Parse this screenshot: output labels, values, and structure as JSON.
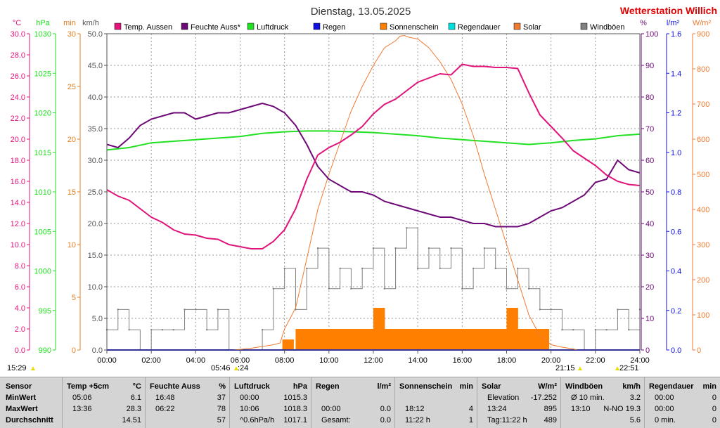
{
  "title": "Dienstag, 13.05.2025",
  "brand": "Wetterstation Willich",
  "colors": {
    "temp": "#e0147a",
    "humidity": "#6e0a78",
    "pressure": "#22e022",
    "rain": "#1010e0",
    "sunshine": "#ff7f00",
    "raindur": "#00e0e0",
    "solar": "#f07a30",
    "gust": "#808080"
  },
  "legend": [
    {
      "label": "Temp. Aussen",
      "color": "#e0147a"
    },
    {
      "label": "Feuchte Auss*",
      "color": "#6e0a78"
    },
    {
      "label": "Luftdruck",
      "color": "#22e022"
    },
    {
      "label": "Regen",
      "color": "#1010e0"
    },
    {
      "label": "Sonnenschein",
      "color": "#ff7f00"
    },
    {
      "label": "Regendauer",
      "color": "#00e0e0"
    },
    {
      "label": "Solar",
      "color": "#f07a30"
    },
    {
      "label": "Windböen",
      "color": "#808080"
    }
  ],
  "units": {
    "temp": "°C",
    "pressure": "hPa",
    "sun": "min",
    "wind": "km/h",
    "humidity": "%",
    "rain": "l/m²",
    "solar": "W/m²"
  },
  "axes": {
    "temp": [
      "0.0",
      "2.0",
      "4.0",
      "6.0",
      "8.0",
      "10.0",
      "12.0",
      "14.0",
      "16.0",
      "18.0",
      "20.0",
      "22.0",
      "24.0",
      "26.0",
      "28.0",
      "30.0"
    ],
    "pressure": [
      "990",
      "995",
      "1000",
      "1005",
      "1010",
      "1015",
      "1020",
      "1025",
      "1030"
    ],
    "sun": [
      "0",
      "5",
      "10",
      "15",
      "20",
      "25",
      "30"
    ],
    "wind": [
      "0.0",
      "5.0",
      "10.0",
      "15.0",
      "20.0",
      "25.0",
      "30.0",
      "35.0",
      "40.0",
      "45.0",
      "50.0"
    ],
    "humidity": [
      "0",
      "10",
      "20",
      "30",
      "40",
      "50",
      "60",
      "70",
      "80",
      "90",
      "100"
    ],
    "rain": [
      "0.0",
      "0.2",
      "0.4",
      "0.6",
      "0.8",
      "1.0",
      "1.2",
      "1.4",
      "1.6"
    ],
    "solar": [
      "0",
      "100",
      "200",
      "300",
      "400",
      "500",
      "600",
      "700",
      "800",
      "900"
    ],
    "time": [
      "00:00",
      "02:00",
      "04:00",
      "06:00",
      "08:00",
      "10:00",
      "12:00",
      "14:00",
      "16:00",
      "18:00",
      "20:00",
      "22:00",
      "24:00"
    ]
  },
  "events": {
    "moonset": "15:29",
    "sunrise": "05:46",
    "sunrise_tail": ":24",
    "sunset": "21:15",
    "moonrise": "22:51"
  },
  "chart_data": {
    "type": "line",
    "x_unit": "hours",
    "xlim": [
      0,
      24
    ],
    "series": [
      {
        "name": "Temp. Aussen",
        "axis": "°C",
        "ylim": [
          0,
          30
        ],
        "x": [
          0,
          0.5,
          1,
          1.5,
          2,
          2.5,
          3,
          3.5,
          4,
          4.5,
          5,
          5.5,
          6,
          6.5,
          7,
          7.5,
          8,
          8.5,
          9,
          9.5,
          10,
          10.5,
          11,
          11.5,
          12,
          12.5,
          13,
          13.5,
          14,
          14.5,
          15,
          15.5,
          16,
          16.5,
          17,
          17.5,
          18,
          18.5,
          19,
          19.5,
          20,
          20.5,
          21,
          21.5,
          22,
          22.5,
          23,
          23.5,
          24
        ],
        "y": [
          15.2,
          14.6,
          14.2,
          13.4,
          12.6,
          12.1,
          11.4,
          11.0,
          10.9,
          10.6,
          10.5,
          10.0,
          9.8,
          9.6,
          9.6,
          10.3,
          11.4,
          13.4,
          16.2,
          18.5,
          19.2,
          19.7,
          20.4,
          21.2,
          22.4,
          23.3,
          23.8,
          24.6,
          25.4,
          25.8,
          26.2,
          26.1,
          27.1,
          26.9,
          26.9,
          26.8,
          26.8,
          26.7,
          24.4,
          22.3,
          21.2,
          20.1,
          18.9,
          18.2,
          17.5,
          16.6,
          16.0,
          15.7,
          15.6
        ]
      },
      {
        "name": "Feuchte Auss*",
        "axis": "%",
        "ylim": [
          0,
          100
        ],
        "x": [
          0,
          0.5,
          1,
          1.5,
          2,
          2.5,
          3,
          3.5,
          4,
          4.5,
          5,
          5.5,
          6,
          6.5,
          7,
          7.5,
          8,
          8.5,
          9,
          9.5,
          10,
          10.5,
          11,
          11.5,
          12,
          12.5,
          13,
          13.5,
          14,
          14.5,
          15,
          15.5,
          16,
          16.5,
          17,
          17.5,
          18,
          18.5,
          19,
          19.5,
          20,
          20.5,
          21,
          21.5,
          22,
          22.5,
          23,
          23.5,
          24
        ],
        "y": [
          65,
          64,
          67,
          71,
          73,
          74,
          75,
          75,
          73,
          74,
          75,
          75,
          76,
          77,
          78,
          77,
          75,
          71,
          65,
          58,
          54,
          52,
          50,
          50,
          49,
          47,
          46,
          45,
          44,
          43,
          42,
          42,
          41,
          40,
          40,
          39,
          39,
          39,
          40,
          42,
          44,
          45,
          47,
          49,
          53,
          54,
          60,
          57,
          56
        ]
      },
      {
        "name": "Luftdruck",
        "axis": "hPa",
        "ylim": [
          990,
          1030
        ],
        "x": [
          0,
          1,
          2,
          3,
          4,
          5,
          6,
          7,
          8,
          9,
          10,
          11,
          12,
          13,
          14,
          15,
          16,
          17,
          18,
          19,
          20,
          21,
          22,
          23,
          24
        ],
        "y": [
          1015.3,
          1015.6,
          1016.2,
          1016.4,
          1016.6,
          1016.8,
          1017.0,
          1017.4,
          1017.6,
          1017.7,
          1017.7,
          1017.6,
          1017.5,
          1017.3,
          1017.1,
          1016.8,
          1016.6,
          1016.4,
          1016.2,
          1016.0,
          1016.2,
          1016.5,
          1016.7,
          1017.1,
          1017.3
        ]
      },
      {
        "name": "Solar",
        "axis": "W/m²",
        "ylim": [
          0,
          900
        ],
        "x": [
          5.7,
          6.5,
          7,
          7.5,
          7.8,
          8,
          8.5,
          9,
          9.5,
          10,
          10.5,
          11,
          11.5,
          12,
          12.5,
          13,
          13.2,
          13.4,
          13.6,
          14,
          14.5,
          15,
          15.5,
          16,
          16.5,
          17,
          17.5,
          18,
          18.5,
          19,
          19.5,
          20,
          20.5,
          21,
          21.2
        ],
        "y": [
          0,
          5,
          10,
          15,
          20,
          60,
          120,
          260,
          400,
          500,
          590,
          680,
          750,
          810,
          860,
          880,
          893,
          895,
          890,
          885,
          860,
          820,
          770,
          700,
          610,
          500,
          400,
          300,
          200,
          100,
          40,
          15,
          8,
          3,
          0
        ]
      },
      {
        "name": "Regen",
        "axis": "l/m²",
        "ylim": [
          0,
          1.6
        ],
        "x": [
          0,
          24
        ],
        "y": [
          0.0,
          0.0
        ]
      },
      {
        "name": "Sonnenschein",
        "axis": "min",
        "ylim": [
          0,
          30
        ],
        "type": "bar",
        "x": [
          7.9,
          8.5,
          9,
          9.5,
          10,
          10.5,
          11,
          11.5,
          12,
          12.5,
          13,
          13.5,
          14,
          14.5,
          15,
          15.5,
          16,
          16.5,
          17,
          17.5,
          18,
          18.5,
          19,
          19.4
        ],
        "y": [
          1,
          2,
          2,
          2,
          2,
          2,
          2,
          2,
          4,
          2,
          2,
          2,
          2,
          2,
          2,
          2,
          2,
          2,
          2,
          2,
          4,
          2,
          2,
          2
        ]
      },
      {
        "name": "Windböen",
        "axis": "km/h",
        "ylim": [
          0,
          50
        ],
        "x": [
          0,
          0.5,
          1,
          1.5,
          2,
          2.5,
          3,
          3.5,
          4,
          4.5,
          5,
          5.5,
          6,
          6.5,
          7,
          7.5,
          8,
          8.5,
          9,
          9.5,
          10,
          10.5,
          11,
          11.5,
          12,
          12.5,
          13,
          13.5,
          14,
          14.5,
          15,
          15.5,
          16,
          16.5,
          17,
          17.5,
          18,
          18.5,
          19,
          19.5,
          20,
          20.5,
          21,
          21.5,
          22,
          22.5,
          23,
          23.5,
          24
        ],
        "y": [
          3.2,
          6.4,
          3.2,
          0,
          3.2,
          3.2,
          3.2,
          6.4,
          6.4,
          3.2,
          6.4,
          0,
          0,
          0,
          3.2,
          9.7,
          12.9,
          6.4,
          12.9,
          16.1,
          9.7,
          12.9,
          9.7,
          12.9,
          16.1,
          9.7,
          16.1,
          19.3,
          12.9,
          16.1,
          12.9,
          16.1,
          9.7,
          12.9,
          16.1,
          12.9,
          9.7,
          12.9,
          9.7,
          6.4,
          6.4,
          3.2,
          3.2,
          0,
          3.2,
          3.2,
          6.4,
          3.2,
          6.4
        ]
      }
    ]
  },
  "stats": {
    "columns": [
      {
        "head": [
          "Sensor"
        ],
        "rows": [
          [
            "MinWert"
          ],
          [
            "MaxWert"
          ],
          [
            "Durchschnitt"
          ]
        ]
      },
      {
        "head": [
          "Temp +5cm",
          "°C"
        ],
        "rows": [
          [
            "05:06",
            "6.1"
          ],
          [
            "13:36",
            "28.3"
          ],
          [
            "",
            "14.51"
          ]
        ]
      },
      {
        "head": [
          "Feuchte Auss",
          "%"
        ],
        "rows": [
          [
            "16:48",
            "37"
          ],
          [
            "06:22",
            "78"
          ],
          [
            "",
            "57"
          ]
        ]
      },
      {
        "head": [
          "Luftdruck",
          "hPa"
        ],
        "rows": [
          [
            "00:00",
            "1015.3"
          ],
          [
            "10:06",
            "1018.3"
          ],
          [
            "^0.6hPa/h",
            "1017.1"
          ]
        ]
      },
      {
        "head": [
          "Regen",
          "l/m²"
        ],
        "rows": [
          [
            "",
            ""
          ],
          [
            "00:00",
            "0.0"
          ],
          [
            "Gesamt:",
            "0.0"
          ]
        ]
      },
      {
        "head": [
          "Sonnenschein",
          "min"
        ],
        "rows": [
          [
            "",
            ""
          ],
          [
            "18:12",
            "4"
          ],
          [
            "11:22 h",
            "1"
          ]
        ]
      },
      {
        "head": [
          "Solar",
          "W/m²"
        ],
        "rows": [
          [
            "Elevation",
            "-17.252"
          ],
          [
            "13:24",
            "895"
          ],
          [
            "Tag:11:22 h",
            "489"
          ]
        ]
      },
      {
        "head": [
          "Windböen",
          "km/h"
        ],
        "rows": [
          [
            "Ø 10 min.",
            "3.2"
          ],
          [
            "13:10",
            "N-NO 19.3"
          ],
          [
            "",
            "5.6"
          ]
        ]
      },
      {
        "head": [
          "Regendauer",
          "min"
        ],
        "rows": [
          [
            "00:00",
            "0"
          ],
          [
            "00:00",
            "0"
          ],
          [
            "0 min.",
            "0"
          ]
        ]
      }
    ]
  }
}
